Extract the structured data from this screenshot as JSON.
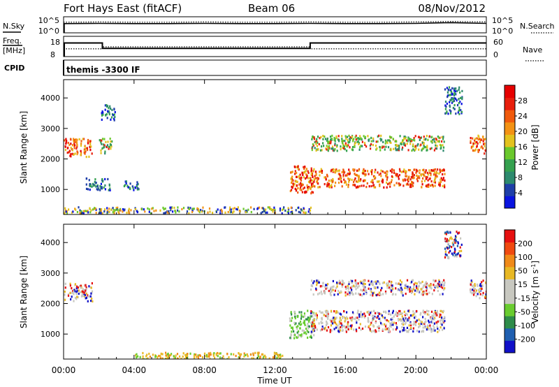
{
  "header": {
    "station": "Fort Hays East (fitACF)",
    "beam": "Beam 06",
    "date": "08/Nov/2012",
    "cpid_label": "CPID",
    "cpid_value": "themis -3300 IF"
  },
  "colors": {
    "power": [
      "#0a14e0",
      "#1f3fa8",
      "#2d8a6e",
      "#35a14f",
      "#6ac82d",
      "#e3c21e",
      "#f39214",
      "#f05a0c",
      "#e81f0c",
      "#e60000"
    ],
    "velocity": [
      "#1010c8",
      "#1f5fb0",
      "#2e8c4a",
      "#69cc2f",
      "#c8c8c0",
      "#c8c8c0",
      "#e8b824",
      "#f08a18",
      "#f04a10",
      "#e61010"
    ],
    "noise": "#000000",
    "ground": "#c8c8c0"
  },
  "chart_data": [
    {
      "type": "line",
      "panel": "noise",
      "left_label": "N.Sky",
      "right_label": "N.Search",
      "yticks_left": [
        "10^5",
        "10^0"
      ],
      "yticks_right": [
        "10^5",
        "10^0"
      ],
      "x": [
        "00:00",
        "02:00",
        "04:00",
        "06:00",
        "08:00",
        "10:00",
        "12:00",
        "14:00",
        "16:00",
        "18:00",
        "20:00",
        "22:00",
        "24:00"
      ],
      "series": [
        {
          "name": "N.Sky",
          "values": [
            3.0,
            3.1,
            3.0,
            3.0,
            3.1,
            3.0,
            3.0,
            3.1,
            3.0,
            3.0,
            3.1,
            3.4,
            3.1
          ]
        },
        {
          "name": "N.Search",
          "values": [
            3.6,
            3.7,
            3.6,
            3.6,
            3.7,
            3.6,
            3.6,
            3.7,
            3.6,
            3.6,
            3.7,
            3.9,
            3.7
          ]
        }
      ]
    },
    {
      "type": "line",
      "panel": "frequency",
      "left_label_1": "Freq.",
      "left_label_2": "[MHz]",
      "right_label": "Nave",
      "yticks_left": [
        "18",
        "8"
      ],
      "yticks_right": [
        "60",
        "0"
      ],
      "ylim_left": [
        8,
        18
      ],
      "ylim_right": [
        0,
        60
      ],
      "freq_steps": [
        {
          "x_start": 0.0,
          "x_end": 2.2,
          "mhz": 15.5
        },
        {
          "x_start": 2.2,
          "x_end": 14.0,
          "mhz": 12.0
        },
        {
          "x_start": 14.0,
          "x_end": 24.0,
          "mhz": 15.5
        }
      ],
      "nave_steps": [
        {
          "x_start": 0.0,
          "x_end": 2.2,
          "value": 22
        },
        {
          "x_start": 2.2,
          "x_end": 14.0,
          "value": 30
        },
        {
          "x_start": 14.0,
          "x_end": 24.0,
          "value": 22
        }
      ]
    },
    {
      "type": "heatmap",
      "panel": "power",
      "ylabel": "Slant Range [km]",
      "yticks": [
        "1000",
        "2000",
        "3000",
        "4000"
      ],
      "ylim": [
        180,
        4600
      ],
      "xlim": [
        0,
        24
      ],
      "colorbar_label": "Power [dB]",
      "colorbar_ticks": [
        "28",
        "24",
        "20",
        "16",
        "12",
        "8",
        "4"
      ],
      "regions": [
        {
          "t": [
            0.0,
            1.6
          ],
          "r": [
            2100,
            2700
          ],
          "level": "high"
        },
        {
          "t": [
            2.0,
            2.7
          ],
          "r": [
            2200,
            2700
          ],
          "level": "mid"
        },
        {
          "t": [
            2.1,
            2.9
          ],
          "r": [
            3300,
            3800
          ],
          "level": "low"
        },
        {
          "t": [
            1.2,
            2.6
          ],
          "r": [
            1000,
            1400
          ],
          "level": "low"
        },
        {
          "t": [
            3.4,
            4.3
          ],
          "r": [
            1000,
            1300
          ],
          "level": "low"
        },
        {
          "t": [
            0.0,
            14.0
          ],
          "r": [
            250,
            450
          ],
          "level": "ground"
        },
        {
          "t": [
            12.8,
            14.2
          ],
          "r": [
            900,
            1800
          ],
          "level": "high"
        },
        {
          "t": [
            14.0,
            21.6
          ],
          "r": [
            1100,
            1700
          ],
          "level": "high"
        },
        {
          "t": [
            14.0,
            21.6
          ],
          "r": [
            2300,
            2800
          ],
          "level": "mid"
        },
        {
          "t": [
            21.6,
            22.6
          ],
          "r": [
            3500,
            4400
          ],
          "level": "low"
        },
        {
          "t": [
            23.0,
            24.0
          ],
          "r": [
            2200,
            2800
          ],
          "level": "high"
        }
      ]
    },
    {
      "type": "heatmap",
      "panel": "velocity",
      "ylabel": "Slant Range [km]",
      "yticks": [
        "1000",
        "2000",
        "3000",
        "4000"
      ],
      "ylim": [
        180,
        4600
      ],
      "xlim": [
        0,
        24
      ],
      "xlabel": "Time UT",
      "xticks": [
        "00:00",
        "04:00",
        "08:00",
        "12:00",
        "16:00",
        "20:00",
        "00:00"
      ],
      "colorbar_label": "Velocity [m s^-1]",
      "colorbar_ticks": [
        "200",
        "100",
        "50",
        "15",
        "-15",
        "-50",
        "-100",
        "-200"
      ],
      "regions": [
        {
          "t": [
            0.0,
            1.6
          ],
          "r": [
            2100,
            2700
          ],
          "level": "ground"
        },
        {
          "t": [
            12.8,
            14.2
          ],
          "r": [
            900,
            1800
          ],
          "level": "green"
        },
        {
          "t": [
            14.0,
            21.6
          ],
          "r": [
            1100,
            1800
          ],
          "level": "ground"
        },
        {
          "t": [
            14.0,
            21.6
          ],
          "r": [
            2300,
            2800
          ],
          "level": "ground"
        },
        {
          "t": [
            23.0,
            24.0
          ],
          "r": [
            2200,
            2800
          ],
          "level": "ground"
        },
        {
          "t": [
            4.0,
            12.5
          ],
          "r": [
            200,
            420
          ],
          "level": "orange"
        },
        {
          "t": [
            21.6,
            22.6
          ],
          "r": [
            3500,
            4400
          ],
          "level": "mixed"
        }
      ]
    }
  ]
}
